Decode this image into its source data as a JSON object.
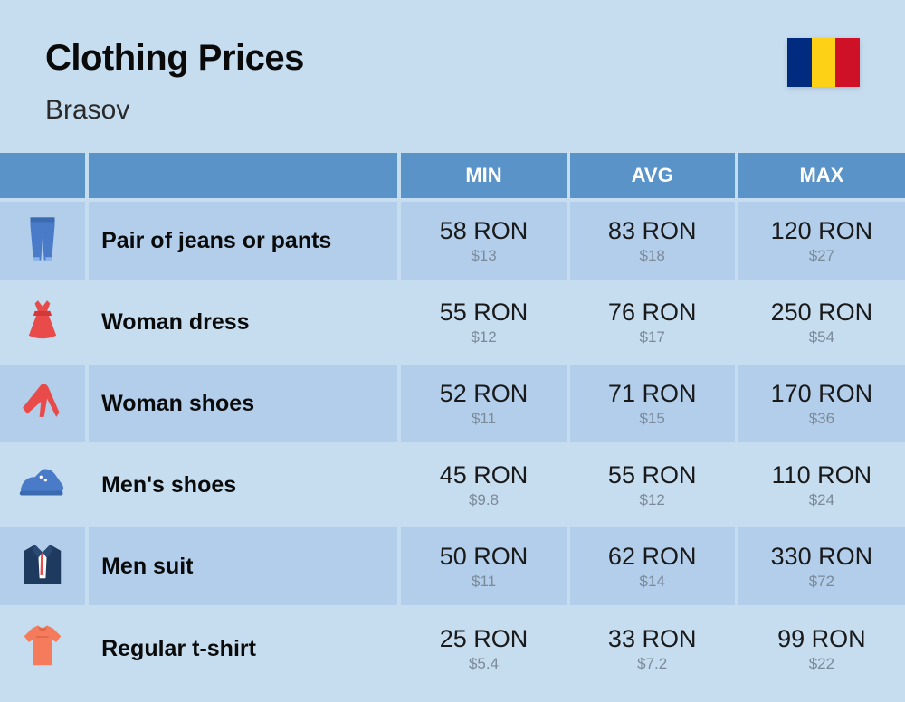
{
  "header": {
    "title": "Clothing Prices",
    "subtitle": "Brasov"
  },
  "flag": {
    "stripe1": "#012b7f",
    "stripe2": "#fcd116",
    "stripe3": "#ce1126"
  },
  "columns": {
    "min": "MIN",
    "avg": "AVG",
    "max": "MAX"
  },
  "colors": {
    "header_bg": "#5a93c7",
    "row_even": "#b2ceea",
    "row_odd": "#c6ddf0",
    "page_bg": "#c6ddf0",
    "primary_text": "#1a1a1a",
    "secondary_text": "#7b8a99",
    "icon_blue": "#4a7bc8",
    "icon_red": "#e94b4b",
    "icon_navy": "#1e3a5f",
    "icon_coral": "#f47c5c"
  },
  "rows": [
    {
      "icon": "jeans",
      "name": "Pair of jeans or pants",
      "min_primary": "58 RON",
      "min_secondary": "$13",
      "avg_primary": "83 RON",
      "avg_secondary": "$18",
      "max_primary": "120 RON",
      "max_secondary": "$27"
    },
    {
      "icon": "dress",
      "name": "Woman dress",
      "min_primary": "55 RON",
      "min_secondary": "$12",
      "avg_primary": "76 RON",
      "avg_secondary": "$17",
      "max_primary": "250 RON",
      "max_secondary": "$54"
    },
    {
      "icon": "heel",
      "name": "Woman shoes",
      "min_primary": "52 RON",
      "min_secondary": "$11",
      "avg_primary": "71 RON",
      "avg_secondary": "$15",
      "max_primary": "170 RON",
      "max_secondary": "$36"
    },
    {
      "icon": "sneaker",
      "name": "Men's shoes",
      "min_primary": "45 RON",
      "min_secondary": "$9.8",
      "avg_primary": "55 RON",
      "avg_secondary": "$12",
      "max_primary": "110 RON",
      "max_secondary": "$24"
    },
    {
      "icon": "suit",
      "name": "Men suit",
      "min_primary": "50 RON",
      "min_secondary": "$11",
      "avg_primary": "62 RON",
      "avg_secondary": "$14",
      "max_primary": "330 RON",
      "max_secondary": "$72"
    },
    {
      "icon": "tshirt",
      "name": "Regular t-shirt",
      "min_primary": "25 RON",
      "min_secondary": "$5.4",
      "avg_primary": "33 RON",
      "avg_secondary": "$7.2",
      "max_primary": "99 RON",
      "max_secondary": "$22"
    }
  ]
}
